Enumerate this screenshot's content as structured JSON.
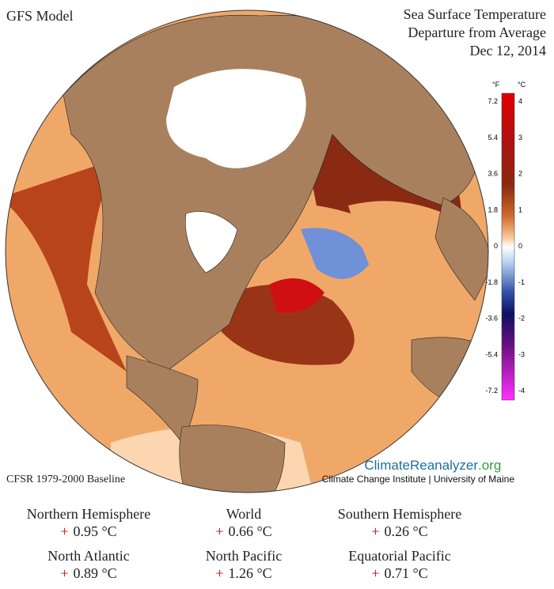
{
  "header": {
    "model": "GFS Model",
    "title_lines": [
      "Sea Surface Temperature",
      "Departure from Average",
      "Dec 12, 2014"
    ],
    "baseline": "CFSR 1979-2000 Baseline",
    "brand_main": "ClimateReanalyzer",
    "brand_tld": ".org",
    "brand_sub": "Climate Change Institute | University of Maine"
  },
  "colorbar": {
    "unit_f": "°F",
    "unit_c": "°C",
    "ticks_f": [
      "7.2",
      "5.4",
      "3.6",
      "1.8",
      "0",
      "-1.8",
      "-3.6",
      "-5.4",
      "-7.2"
    ],
    "ticks_c": [
      "4",
      "3",
      "2",
      "1",
      "0",
      "-1",
      "-2",
      "-3",
      "-4"
    ]
  },
  "stats": [
    {
      "label": "Northern Hemisphere",
      "sign": "+",
      "value": "0.95 °C"
    },
    {
      "label": "World",
      "sign": "+",
      "value": "0.66 °C"
    },
    {
      "label": "Southern Hemisphere",
      "sign": "+",
      "value": "0.26 °C"
    },
    {
      "label": "North Atlantic",
      "sign": "+",
      "value": "0.89 °C"
    },
    {
      "label": "North Pacific",
      "sign": "+",
      "value": "1.26 °C"
    },
    {
      "label": "Equatorial Pacific",
      "sign": "+",
      "value": "0.71 °C"
    }
  ]
}
